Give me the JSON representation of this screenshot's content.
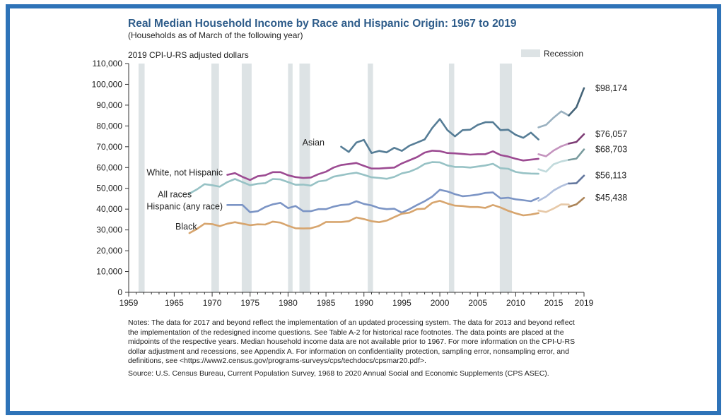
{
  "title": "Real Median Household Income by Race and Hispanic Origin: 1967 to 2019",
  "subtitle": "(Households as of March of the following year)",
  "units_label": "2019 CPI-U-RS adjusted dollars",
  "legend": {
    "recession_label": "Recession",
    "recession_color": "#dde3e5"
  },
  "notes": "Notes: The data for 2017 and beyond reflect the implementation of an updated processing system. The data for 2013 and beyond reflect the implementation of the redesigned income questions. See Table A-2 for historical race footnotes. The data points are placed at the midpoints of the respective years. Median household income data are not available prior to 1967. For more information on the CPI-U-RS dollar adjustment and recessions, see Appendix A. For information on confidentiality protection, sampling error, nonsampling error, and definitions, see <https://www2.census.gov/programs-surveys/cps/techdocs/cpsmar20.pdf>.",
  "source": "Source: U.S. Census Bureau, Current Population Survey, 1968 to 2020 Annual Social and Economic Supplements (CPS ASEC).",
  "chart_data": {
    "type": "line",
    "xlim": [
      1959,
      2019
    ],
    "ylim": [
      0,
      110000
    ],
    "x_ticks": [
      "1959",
      "1965",
      "1970",
      "1975",
      "1980",
      "1985",
      "1990",
      "1995",
      "2000",
      "2005",
      "2010",
      "2015",
      "2019"
    ],
    "y_ticks": [
      "0",
      "10,000",
      "20,000",
      "30,000",
      "40,000",
      "50,000",
      "60,000",
      "70,000",
      "80,000",
      "90,000",
      "100,000",
      "110,000"
    ],
    "recessions": [
      [
        1960.3,
        1961.1
      ],
      [
        1969.9,
        1970.9
      ],
      [
        1973.9,
        1975.2
      ],
      [
        1980.0,
        1980.6
      ],
      [
        1981.5,
        1982.9
      ],
      [
        1990.5,
        1991.2
      ],
      [
        2001.2,
        2001.9
      ],
      [
        2007.9,
        2009.5
      ]
    ],
    "series": [
      {
        "name": "Asian",
        "color": "#567d96",
        "label_year": 1984.8,
        "label_value": 72000,
        "label_anchor": "end",
        "segments": [
          {
            "years": [
              1987,
              1988,
              1989,
              1990,
              1991,
              1992,
              1993,
              1994,
              1995,
              1996,
              1997,
              1998,
              1999,
              2000,
              2001,
              2002,
              2003,
              2004,
              2005,
              2006,
              2007,
              2008,
              2009,
              2010,
              2011,
              2012,
              2013
            ],
            "values": [
              70000,
              67500,
              72000,
              73300,
              67000,
              68000,
              67300,
              69500,
              68000,
              70500,
              72000,
              73500,
              79000,
              83300,
              78000,
              75000,
              78000,
              78200,
              80500,
              81800,
              81800,
              78000,
              78200,
              75700,
              74300,
              76800,
              73500
            ]
          },
          {
            "years": [
              2013,
              2014,
              2015,
              2016,
              2017
            ],
            "values": [
              79300,
              80500,
              84000,
              87000,
              85000
            ]
          },
          {
            "years": [
              2017,
              2018,
              2019
            ],
            "values": [
              85000,
              89000,
              98174
            ]
          }
        ],
        "end_label": "$98,174"
      },
      {
        "name": "White, not Hispanic",
        "color": "#9c4b92",
        "label_year": 1971.4,
        "label_value": 57500,
        "label_anchor": "end",
        "segments": [
          {
            "years": [
              1972,
              1973,
              1974,
              1975,
              1976,
              1977,
              1978,
              1979,
              1980,
              1981,
              1982,
              1983,
              1984,
              1985,
              1986,
              1987,
              1988,
              1989,
              1990,
              1991,
              1992,
              1993,
              1994,
              1995,
              1996,
              1997,
              1998,
              1999,
              2000,
              2001,
              2002,
              2003,
              2004,
              2005,
              2006,
              2007,
              2008,
              2009,
              2010,
              2011,
              2012,
              2013
            ],
            "values": [
              56500,
              57300,
              55500,
              54000,
              55800,
              56300,
              57800,
              57800,
              56300,
              55400,
              55000,
              55200,
              56800,
              58000,
              60000,
              61200,
              61700,
              62200,
              60800,
              59500,
              59500,
              59800,
              60000,
              62000,
              63500,
              65000,
              67200,
              68100,
              67900,
              67000,
              66800,
              66500,
              66200,
              66400,
              66400,
              67800,
              66000,
              65300,
              64200,
              63400,
              63800,
              64200
            ]
          },
          {
            "years": [
              2013,
              2014,
              2015,
              2016,
              2017
            ],
            "values": [
              66400,
              65400,
              68200,
              70200,
              71500
            ]
          },
          {
            "years": [
              2017,
              2018,
              2019
            ],
            "values": [
              71500,
              72300,
              76057
            ]
          }
        ],
        "end_label": "$76,057"
      },
      {
        "name": "All races",
        "color": "#97c2c5",
        "label_year": 1967.3,
        "label_value": 47000,
        "label_anchor": "end",
        "segments": [
          {
            "years": [
              1967,
              1968,
              1969,
              1970,
              1971,
              1972,
              1973,
              1974,
              1975,
              1976,
              1977,
              1978,
              1979,
              1980,
              1981,
              1982,
              1983,
              1984,
              1985,
              1986,
              1987,
              1988,
              1989,
              1990,
              1991,
              1992,
              1993,
              1994,
              1995,
              1996,
              1997,
              1998,
              1999,
              2000,
              2001,
              2002,
              2003,
              2004,
              2005,
              2006,
              2007,
              2008,
              2009,
              2010,
              2011,
              2012,
              2013
            ],
            "values": [
              47500,
              49500,
              52000,
              51500,
              50800,
              53000,
              54500,
              53000,
              51500,
              52200,
              52500,
              54500,
              54300,
              53000,
              51700,
              51800,
              51300,
              53300,
              53800,
              55600,
              56300,
              57000,
              57500,
              56500,
              55300,
              55000,
              54600,
              55500,
              57200,
              58000,
              59500,
              61700,
              62600,
              62500,
              61000,
              60300,
              60300,
              60000,
              60500,
              61000,
              61800,
              59700,
              59400,
              57900,
              57300,
              57100,
              57000
            ]
          },
          {
            "years": [
              2013,
              2014,
              2015,
              2016,
              2017
            ],
            "values": [
              59200,
              58000,
              61600,
              62900,
              63700
            ]
          },
          {
            "years": [
              2017,
              2018,
              2019
            ],
            "values": [
              63700,
              64300,
              68703
            ]
          }
        ],
        "end_label": "$68,703"
      },
      {
        "name": "Hispanic (any race)",
        "color": "#7c95c5",
        "label_year": 1971.4,
        "label_value": 41200,
        "label_anchor": "end",
        "segments": [
          {
            "years": [
              1972,
              1973,
              1974,
              1975,
              1976,
              1977,
              1978,
              1979,
              1980,
              1981,
              1982,
              1983,
              1984,
              1985,
              1986,
              1987,
              1988,
              1989,
              1990,
              1991,
              1992,
              1993,
              1994,
              1995,
              1996,
              1997,
              1998,
              1999,
              2000,
              2001,
              2002,
              2003,
              2004,
              2005,
              2006,
              2007,
              2008,
              2009,
              2010,
              2011,
              2012,
              2013
            ],
            "values": [
              42000,
              42000,
              42000,
              38500,
              39000,
              41000,
              42300,
              43000,
              40500,
              41500,
              39000,
              39000,
              40000,
              40000,
              41200,
              42000,
              42300,
              43800,
              42500,
              41800,
              40500,
              40000,
              40200,
              38300,
              40000,
              42000,
              43800,
              46000,
              49300,
              48500,
              47200,
              46200,
              46500,
              47000,
              47800,
              48000,
              45200,
              45500,
              44700,
              44300,
              43800,
              45400
            ]
          },
          {
            "years": [
              2013,
              2014,
              2015,
              2016,
              2017
            ],
            "values": [
              44000,
              46000,
              49000,
              51000,
              52500
            ]
          },
          {
            "years": [
              2017,
              2018,
              2019
            ],
            "values": [
              52300,
              52500,
              56113
            ]
          }
        ],
        "end_label": "$56,113"
      },
      {
        "name": "Black",
        "color": "#d7a56e",
        "label_year": 1968.0,
        "label_value": 31500,
        "label_anchor": "end",
        "segments": [
          {
            "years": [
              1967,
              1968,
              1969,
              1970,
              1971,
              1972,
              1973,
              1974,
              1975,
              1976,
              1977,
              1978,
              1979,
              1980,
              1981,
              1982,
              1983,
              1984,
              1985,
              1986,
              1987,
              1988,
              1989,
              1990,
              1991,
              1992,
              1993,
              1994,
              1995,
              1996,
              1997,
              1998,
              1999,
              2000,
              2001,
              2002,
              2003,
              2004,
              2005,
              2006,
              2007,
              2008,
              2009,
              2010,
              2011,
              2012,
              2013
            ],
            "values": [
              28500,
              30500,
              33000,
              32800,
              31800,
              33000,
              33700,
              33000,
              32300,
              32700,
              32600,
              34000,
              33500,
              32000,
              30800,
              30700,
              30800,
              31800,
              33800,
              33800,
              33800,
              34200,
              36000,
              35200,
              34200,
              33700,
              34500,
              36200,
              37800,
              38300,
              40000,
              40200,
              43000,
              44000,
              42700,
              41700,
              41500,
              41000,
              41000,
              40600,
              42000,
              40800,
              39200,
              38000,
              37000,
              37400,
              38100
            ]
          },
          {
            "years": [
              2013,
              2014,
              2015,
              2016,
              2017
            ],
            "values": [
              39300,
              38600,
              40300,
              42300,
              42200
            ]
          },
          {
            "years": [
              2017,
              2018,
              2019
            ],
            "values": [
              41100,
              42300,
              45438
            ]
          }
        ],
        "end_label": "$45,438"
      }
    ]
  }
}
